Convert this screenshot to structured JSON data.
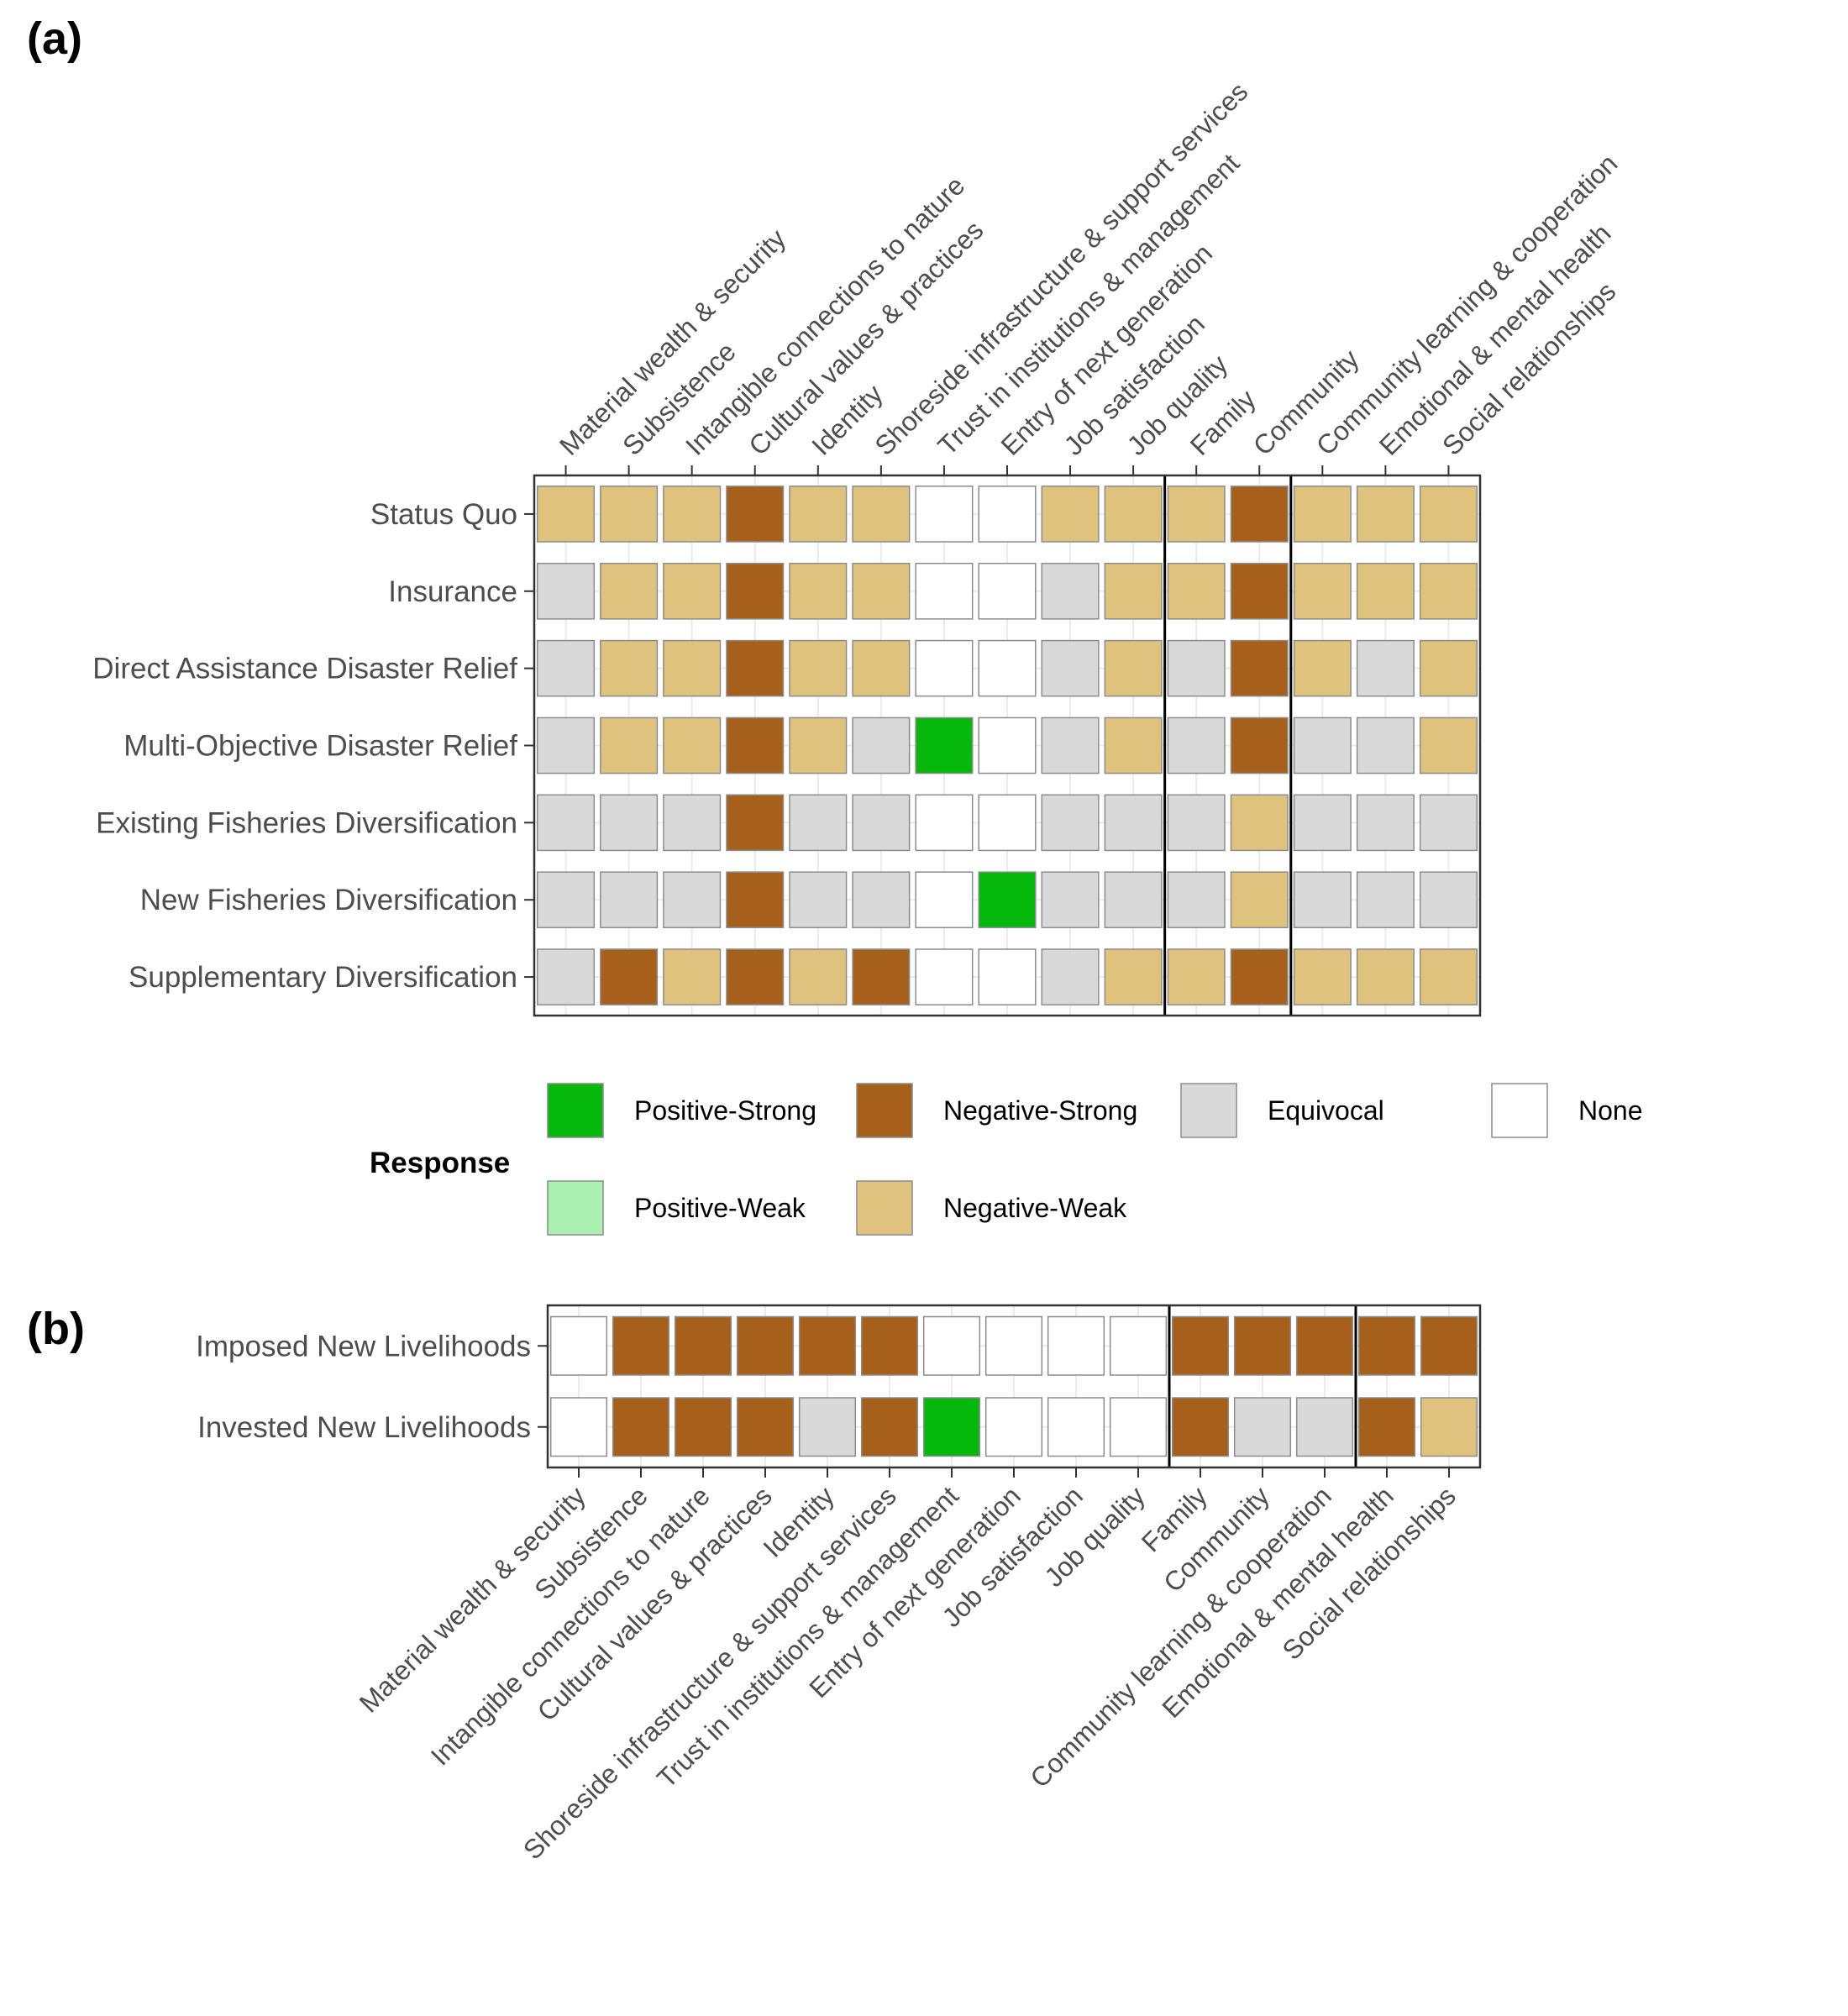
{
  "panels": {
    "a": {
      "label": "(a)"
    },
    "b": {
      "label": "(b)"
    }
  },
  "colors": {
    "Positive-Strong": "#06b80c",
    "Negative-Strong": "#a5611c",
    "Equivocal": "#d9d9d9",
    "None": "#ffffff",
    "Positive-Weak": "#aaf0b0",
    "Negative-Weak": "#dfc27d",
    "tile_border": "#8c8c8c",
    "grid": "#ebebeb",
    "panel_border": "#333333"
  },
  "legend": {
    "title": "Response",
    "items": [
      {
        "key": "Positive-Strong",
        "label": "Positive-Strong"
      },
      {
        "key": "Negative-Strong",
        "label": "Negative-Strong"
      },
      {
        "key": "Equivocal",
        "label": "Equivocal"
      },
      {
        "key": "None",
        "label": "None"
      },
      {
        "key": "Positive-Weak",
        "label": "Positive-Weak"
      },
      {
        "key": "Negative-Weak",
        "label": "Negative-Weak"
      }
    ]
  },
  "chart_data": [
    {
      "type": "heatmap",
      "panel": "(a)",
      "x_categories": [
        "Material wealth & security",
        "Subsistence",
        "Intangible connections to nature",
        "Cultural values & practices",
        "Identity",
        "Shoreside infrastructure & support services",
        "Trust in institutions & management",
        "Entry of next generation",
        "Job satisfaction",
        "Job quality",
        "Family",
        "Community",
        "Community learning & cooperation",
        "Emotional & mental health",
        "Social relationships"
      ],
      "y_categories": [
        "Status Quo",
        "Insurance",
        "Direct Assistance Disaster Relief",
        "Multi-Objective Disaster Relief",
        "Existing Fisheries Diversification",
        "New Fisheries Diversification",
        "Supplementary Diversification"
      ],
      "x_axis_position": "top",
      "group_separators_after": [
        "Job quality",
        "Community"
      ],
      "values": [
        [
          "Negative-Weak",
          "Negative-Weak",
          "Negative-Weak",
          "Negative-Strong",
          "Negative-Weak",
          "Negative-Weak",
          "None",
          "None",
          "Negative-Weak",
          "Negative-Weak",
          "Negative-Weak",
          "Negative-Strong",
          "Negative-Weak",
          "Negative-Weak",
          "Negative-Weak"
        ],
        [
          "Equivocal",
          "Negative-Weak",
          "Negative-Weak",
          "Negative-Strong",
          "Negative-Weak",
          "Negative-Weak",
          "None",
          "None",
          "Equivocal",
          "Negative-Weak",
          "Negative-Weak",
          "Negative-Strong",
          "Negative-Weak",
          "Negative-Weak",
          "Negative-Weak"
        ],
        [
          "Equivocal",
          "Negative-Weak",
          "Negative-Weak",
          "Negative-Strong",
          "Negative-Weak",
          "Negative-Weak",
          "None",
          "None",
          "Equivocal",
          "Negative-Weak",
          "Equivocal",
          "Negative-Strong",
          "Negative-Weak",
          "Equivocal",
          "Negative-Weak"
        ],
        [
          "Equivocal",
          "Negative-Weak",
          "Negative-Weak",
          "Negative-Strong",
          "Negative-Weak",
          "Equivocal",
          "Positive-Strong",
          "None",
          "Equivocal",
          "Negative-Weak",
          "Equivocal",
          "Negative-Strong",
          "Equivocal",
          "Equivocal",
          "Negative-Weak"
        ],
        [
          "Equivocal",
          "Equivocal",
          "Equivocal",
          "Negative-Strong",
          "Equivocal",
          "Equivocal",
          "None",
          "None",
          "Equivocal",
          "Equivocal",
          "Equivocal",
          "Negative-Weak",
          "Equivocal",
          "Equivocal",
          "Equivocal"
        ],
        [
          "Equivocal",
          "Equivocal",
          "Equivocal",
          "Negative-Strong",
          "Equivocal",
          "Equivocal",
          "None",
          "Positive-Strong",
          "Equivocal",
          "Equivocal",
          "Equivocal",
          "Negative-Weak",
          "Equivocal",
          "Equivocal",
          "Equivocal"
        ],
        [
          "Equivocal",
          "Negative-Strong",
          "Negative-Weak",
          "Negative-Strong",
          "Negative-Weak",
          "Negative-Strong",
          "None",
          "None",
          "Equivocal",
          "Negative-Weak",
          "Negative-Weak",
          "Negative-Strong",
          "Negative-Weak",
          "Negative-Weak",
          "Negative-Weak"
        ]
      ]
    },
    {
      "type": "heatmap",
      "panel": "(b)",
      "x_categories": [
        "Material wealth & security",
        "Subsistence",
        "Intangible connections to nature",
        "Cultural values & practices",
        "Identity",
        "Shoreside infrastructure & support services",
        "Trust in institutions & management",
        "Entry of next generation",
        "Job satisfaction",
        "Job quality",
        "Family",
        "Community",
        "Community learning & cooperation",
        "Emotional & mental health",
        "Social relationships"
      ],
      "y_categories": [
        "Imposed New Livelihoods",
        "Invested New Livelihoods"
      ],
      "x_axis_position": "bottom",
      "group_separators_after": [
        "Job quality",
        "Community learning & cooperation"
      ],
      "values": [
        [
          "None",
          "Negative-Strong",
          "Negative-Strong",
          "Negative-Strong",
          "Negative-Strong",
          "Negative-Strong",
          "None",
          "None",
          "None",
          "None",
          "Negative-Strong",
          "Negative-Strong",
          "Negative-Strong",
          "Negative-Strong",
          "Negative-Strong"
        ],
        [
          "None",
          "Negative-Strong",
          "Negative-Strong",
          "Negative-Strong",
          "Equivocal",
          "Negative-Strong",
          "Positive-Strong",
          "None",
          "None",
          "None",
          "Negative-Strong",
          "Equivocal",
          "Equivocal",
          "Negative-Strong",
          "Negative-Weak"
        ]
      ]
    }
  ]
}
